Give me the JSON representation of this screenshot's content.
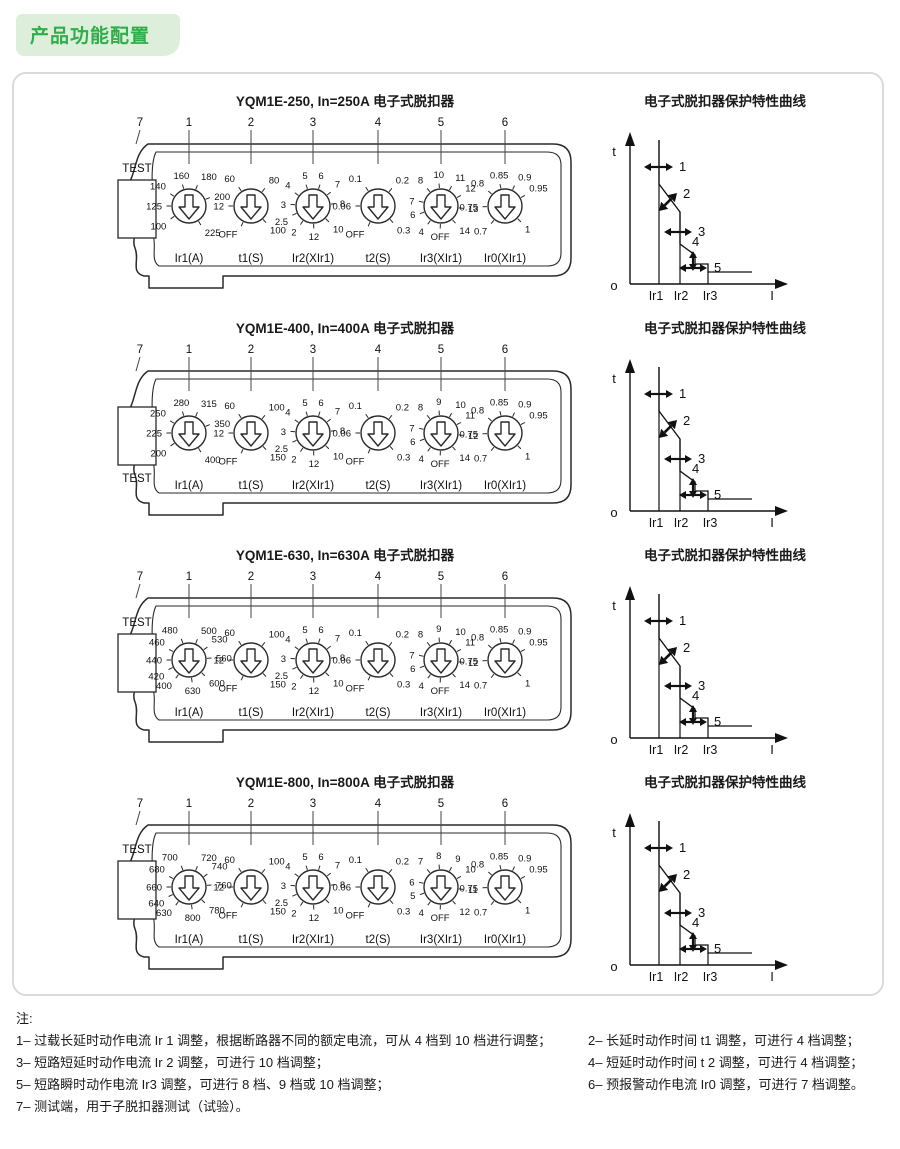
{
  "page_header": {
    "title": "产品功能配置"
  },
  "curve": {
    "title": "电子式脱扣器保护特性曲线",
    "t_label": "t",
    "i_label": "I",
    "origin_label": "o",
    "x_ticks": [
      "Ir1",
      "Ir2",
      "Ir3"
    ],
    "callouts": [
      "1",
      "2",
      "3",
      "4",
      "5"
    ]
  },
  "sections": [
    {
      "title": "YQM1E-250, In=250A 电子式脱扣器",
      "test_callout": "7",
      "test_label": "TEST",
      "test_label_pos": "top",
      "dials": [
        {
          "callout": "1",
          "name": "Ir1(A)",
          "labels": [
            "100",
            "125",
            "140",
            "160",
            "180",
            "200",
            "225"
          ]
        },
        {
          "callout": "2",
          "name": "t1(S)",
          "labels": [
            "12",
            "60",
            "80",
            "100",
            "OFF"
          ]
        },
        {
          "callout": "3",
          "name": "Ir2(XIr1)",
          "labels": [
            "2",
            "2.5",
            "3",
            "4",
            "5",
            "6",
            "7",
            "8",
            "10",
            "12"
          ]
        },
        {
          "callout": "4",
          "name": "t2(S)",
          "labels": [
            "0.06",
            "0.1",
            "0.2",
            "0.3",
            "OFF"
          ]
        },
        {
          "callout": "5",
          "name": "Ir3(XIr1)",
          "labels": [
            "OFF",
            "4",
            "6",
            "7",
            "8",
            "10",
            "11",
            "12",
            "13",
            "14"
          ]
        },
        {
          "callout": "6",
          "name": "Ir0(XIr1)",
          "labels": [
            "0.7",
            "0.75",
            "0.8",
            "0.85",
            "0.9",
            "0.95",
            "1"
          ]
        }
      ]
    },
    {
      "title": "YQM1E-400, In=400A 电子式脱扣器",
      "test_callout": "7",
      "test_label": "TEST",
      "test_label_pos": "bottom",
      "dials": [
        {
          "callout": "1",
          "name": "Ir1(A)",
          "labels": [
            "200",
            "225",
            "250",
            "280",
            "315",
            "350",
            "400"
          ]
        },
        {
          "callout": "2",
          "name": "t1(S)",
          "labels": [
            "12",
            "60",
            "100",
            "150",
            "OFF"
          ]
        },
        {
          "callout": "3",
          "name": "Ir2(XIr1)",
          "labels": [
            "2",
            "2.5",
            "3",
            "4",
            "5",
            "6",
            "7",
            "8",
            "10",
            "12"
          ]
        },
        {
          "callout": "4",
          "name": "t2(S)",
          "labels": [
            "0.06",
            "0.1",
            "0.2",
            "0.3",
            "OFF"
          ]
        },
        {
          "callout": "5",
          "name": "Ir3(XIr1)",
          "labels": [
            "OFF",
            "4",
            "6",
            "7",
            "8",
            "9",
            "10",
            "11",
            "12",
            "14"
          ]
        },
        {
          "callout": "6",
          "name": "Ir0(XIr1)",
          "labels": [
            "0.7",
            "0.75",
            "0.8",
            "0.85",
            "0.9",
            "0.95",
            "1"
          ]
        }
      ]
    },
    {
      "title": "YQM1E-630, In=630A 电子式脱扣器",
      "test_callout": "7",
      "test_label": "TEST",
      "test_label_pos": "top",
      "dials": [
        {
          "callout": "1",
          "name": "Ir1(A)",
          "labels": [
            "400",
            "420",
            "440",
            "460",
            "480",
            "500",
            "530",
            "560",
            "600",
            "630"
          ]
        },
        {
          "callout": "2",
          "name": "t1(S)",
          "labels": [
            "12",
            "60",
            "100",
            "150",
            "OFF"
          ]
        },
        {
          "callout": "3",
          "name": "Ir2(XIr1)",
          "labels": [
            "2",
            "2.5",
            "3",
            "4",
            "5",
            "6",
            "7",
            "8",
            "10",
            "12"
          ]
        },
        {
          "callout": "4",
          "name": "t2(S)",
          "labels": [
            "0.06",
            "0.1",
            "0.2",
            "0.3",
            "OFF"
          ]
        },
        {
          "callout": "5",
          "name": "Ir3(XIr1)",
          "labels": [
            "OFF",
            "4",
            "6",
            "7",
            "8",
            "9",
            "10",
            "11",
            "12",
            "14"
          ]
        },
        {
          "callout": "6",
          "name": "Ir0(XIr1)",
          "labels": [
            "0.7",
            "0.75",
            "0.8",
            "0.85",
            "0.9",
            "0.95",
            "1"
          ]
        }
      ]
    },
    {
      "title": "YQM1E-800, In=800A 电子式脱扣器",
      "test_callout": "7",
      "test_label": "TEST",
      "test_label_pos": "top",
      "dials": [
        {
          "callout": "1",
          "name": "Ir1(A)",
          "labels": [
            "630",
            "640",
            "660",
            "680",
            "700",
            "720",
            "740",
            "760",
            "780",
            "800"
          ]
        },
        {
          "callout": "2",
          "name": "t1(S)",
          "labels": [
            "12",
            "60",
            "100",
            "150",
            "OFF"
          ]
        },
        {
          "callout": "3",
          "name": "Ir2(XIr1)",
          "labels": [
            "2",
            "2.5",
            "3",
            "4",
            "5",
            "6",
            "7",
            "8",
            "10",
            "12"
          ]
        },
        {
          "callout": "4",
          "name": "t2(S)",
          "labels": [
            "0.06",
            "0.1",
            "0.2",
            "0.3",
            "OFF"
          ]
        },
        {
          "callout": "5",
          "name": "Ir3(XIr1)",
          "labels": [
            "OFF",
            "4",
            "5",
            "6",
            "7",
            "8",
            "9",
            "10",
            "11",
            "12"
          ]
        },
        {
          "callout": "6",
          "name": "Ir0(XIr1)",
          "labels": [
            "0.7",
            "0.75",
            "0.8",
            "0.85",
            "0.9",
            "0.95",
            "1"
          ]
        }
      ]
    }
  ],
  "notes": {
    "heading": "注:",
    "left": [
      "1– 过载长延时动作电流 Ir 1 调整，根据断路器不同的额定电流，可从 4 档到 10 档进行调整；",
      "3– 短路短延时动作电流 Ir 2 调整，可进行 10 档调整；",
      "5– 短路瞬时动作电流 Ir3 调整，可进行 8 档、9 档或 10 档调整；",
      "7– 测试端，用于子脱扣器测试（试验）。"
    ],
    "right": [
      "2– 长延时动作时间 t1 调整，可进行 4 档调整；",
      "4– 短延时动作时间 t 2 调整，可进行 4 档调整；",
      "6– 预报警动作电流 Ir0 调整，可进行 7 档调整。"
    ]
  }
}
